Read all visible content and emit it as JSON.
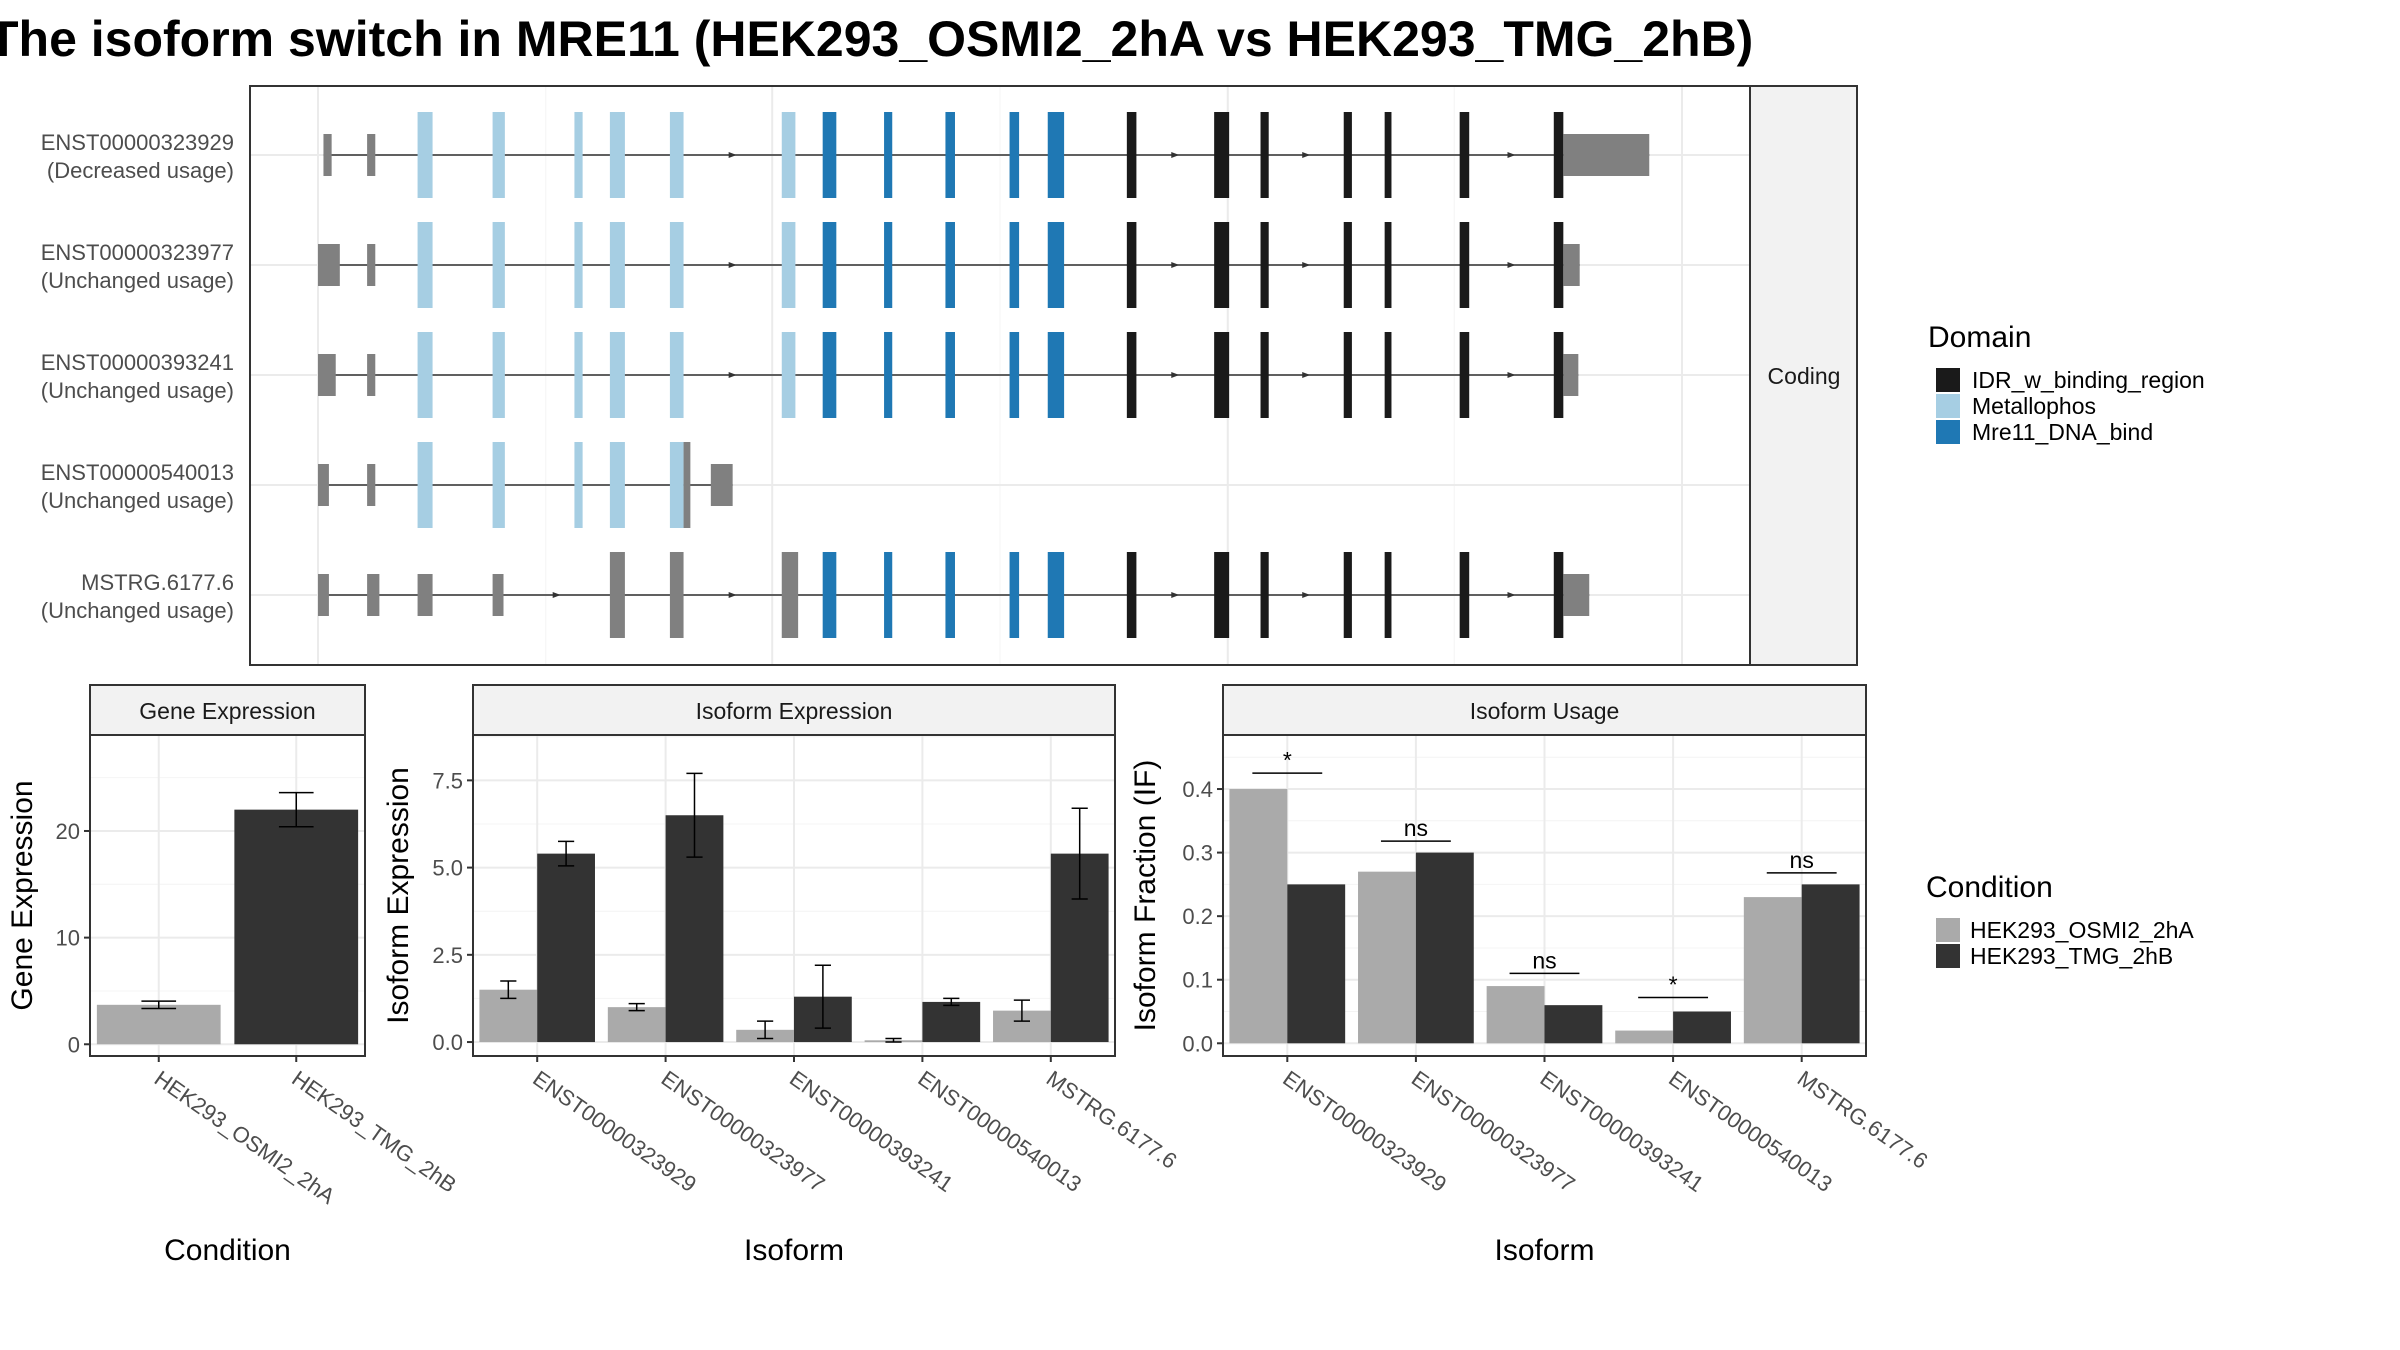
{
  "title": "The isoform switch in MRE11 (HEK293_OSMI2_2hA vs HEK293_TMG_2hB)",
  "colors": {
    "IDR_w_binding_region": "#1a1a1a",
    "Metallophos": "#a6cee3",
    "Mre11_DNA_bind": "#1f78b4",
    "noncoding_exon": "#808080",
    "HEK293_OSMI2_2hA": "#aaaaaa",
    "HEK293_TMG_2hB": "#333333"
  },
  "structure_panel": {
    "facet_label": "Coding",
    "genomic_range": [
      0,
      100
    ],
    "transcripts": [
      {
        "name": "ENST00000323929",
        "usage": "(Decreased usage)",
        "exons": [
          [
            0.4,
            1.0,
            "noncoding_exon",
            "small"
          ],
          [
            3.6,
            4.2,
            "noncoding_exon",
            "small"
          ],
          [
            7.3,
            8.4,
            "Metallophos",
            "large"
          ],
          [
            12.8,
            13.7,
            "Metallophos",
            "large"
          ],
          [
            18.8,
            19.4,
            "Metallophos",
            "large"
          ],
          [
            21.4,
            22.5,
            "Metallophos",
            "large"
          ],
          [
            25.8,
            26.8,
            "Metallophos",
            "large"
          ],
          [
            34.0,
            35.0,
            "Metallophos",
            "large"
          ],
          [
            37.0,
            38.0,
            "Mre11_DNA_bind",
            "large"
          ],
          [
            41.5,
            42.1,
            "Mre11_DNA_bind",
            "large"
          ],
          [
            46.0,
            46.7,
            "Mre11_DNA_bind",
            "large"
          ],
          [
            50.7,
            51.4,
            "Mre11_DNA_bind",
            "large"
          ],
          [
            53.5,
            54.7,
            "Mre11_DNA_bind",
            "large"
          ],
          [
            59.3,
            60.0,
            "IDR_w_binding_region",
            "large"
          ],
          [
            65.7,
            66.8,
            "IDR_w_binding_region",
            "large"
          ],
          [
            69.1,
            69.7,
            "IDR_w_binding_region",
            "large"
          ],
          [
            75.2,
            75.8,
            "IDR_w_binding_region",
            "large"
          ],
          [
            78.2,
            78.7,
            "IDR_w_binding_region",
            "large"
          ],
          [
            83.7,
            84.4,
            "IDR_w_binding_region",
            "large"
          ],
          [
            90.6,
            91.3,
            "IDR_w_binding_region",
            "large"
          ],
          [
            91.3,
            97.6,
            "noncoding_exon",
            "small"
          ]
        ]
      },
      {
        "name": "ENST00000323977",
        "usage": "(Unchanged usage)",
        "exons": [
          [
            0.0,
            1.6,
            "noncoding_exon",
            "small"
          ],
          [
            3.6,
            4.2,
            "noncoding_exon",
            "small"
          ],
          [
            7.3,
            8.4,
            "Metallophos",
            "large"
          ],
          [
            12.8,
            13.7,
            "Metallophos",
            "large"
          ],
          [
            18.8,
            19.4,
            "Metallophos",
            "large"
          ],
          [
            21.4,
            22.5,
            "Metallophos",
            "large"
          ],
          [
            25.8,
            26.8,
            "Metallophos",
            "large"
          ],
          [
            34.0,
            35.0,
            "Metallophos",
            "large"
          ],
          [
            37.0,
            38.0,
            "Mre11_DNA_bind",
            "large"
          ],
          [
            41.5,
            42.1,
            "Mre11_DNA_bind",
            "large"
          ],
          [
            46.0,
            46.7,
            "Mre11_DNA_bind",
            "large"
          ],
          [
            50.7,
            51.4,
            "Mre11_DNA_bind",
            "large"
          ],
          [
            53.5,
            54.7,
            "Mre11_DNA_bind",
            "large"
          ],
          [
            59.3,
            60.0,
            "IDR_w_binding_region",
            "large"
          ],
          [
            65.7,
            66.8,
            "IDR_w_binding_region",
            "large"
          ],
          [
            69.1,
            69.7,
            "IDR_w_binding_region",
            "large"
          ],
          [
            75.2,
            75.8,
            "IDR_w_binding_region",
            "large"
          ],
          [
            78.2,
            78.7,
            "IDR_w_binding_region",
            "large"
          ],
          [
            83.7,
            84.4,
            "IDR_w_binding_region",
            "large"
          ],
          [
            90.6,
            91.3,
            "IDR_w_binding_region",
            "large"
          ],
          [
            91.3,
            92.5,
            "noncoding_exon",
            "small"
          ]
        ]
      },
      {
        "name": "ENST00000393241",
        "usage": "(Unchanged usage)",
        "exons": [
          [
            0.0,
            1.3,
            "noncoding_exon",
            "small"
          ],
          [
            3.6,
            4.2,
            "noncoding_exon",
            "small"
          ],
          [
            7.3,
            8.4,
            "Metallophos",
            "large"
          ],
          [
            12.8,
            13.7,
            "Metallophos",
            "large"
          ],
          [
            18.8,
            19.4,
            "Metallophos",
            "large"
          ],
          [
            21.4,
            22.5,
            "Metallophos",
            "large"
          ],
          [
            25.8,
            26.8,
            "Metallophos",
            "large"
          ],
          [
            34.0,
            35.0,
            "Metallophos",
            "large"
          ],
          [
            37.0,
            38.0,
            "Mre11_DNA_bind",
            "large"
          ],
          [
            41.5,
            42.1,
            "Mre11_DNA_bind",
            "large"
          ],
          [
            46.0,
            46.7,
            "Mre11_DNA_bind",
            "large"
          ],
          [
            50.7,
            51.4,
            "Mre11_DNA_bind",
            "large"
          ],
          [
            53.5,
            54.7,
            "Mre11_DNA_bind",
            "large"
          ],
          [
            59.3,
            60.0,
            "IDR_w_binding_region",
            "large"
          ],
          [
            65.7,
            66.8,
            "IDR_w_binding_region",
            "large"
          ],
          [
            69.1,
            69.7,
            "IDR_w_binding_region",
            "large"
          ],
          [
            75.2,
            75.8,
            "IDR_w_binding_region",
            "large"
          ],
          [
            78.2,
            78.7,
            "IDR_w_binding_region",
            "large"
          ],
          [
            83.7,
            84.4,
            "IDR_w_binding_region",
            "large"
          ],
          [
            90.6,
            91.3,
            "IDR_w_binding_region",
            "large"
          ],
          [
            91.3,
            92.4,
            "noncoding_exon",
            "small"
          ]
        ]
      },
      {
        "name": "ENST00000540013",
        "usage": "(Unchanged usage)",
        "exons": [
          [
            0.0,
            0.8,
            "noncoding_exon",
            "small"
          ],
          [
            3.6,
            4.2,
            "noncoding_exon",
            "small"
          ],
          [
            7.3,
            8.4,
            "Metallophos",
            "large"
          ],
          [
            12.8,
            13.7,
            "Metallophos",
            "large"
          ],
          [
            18.8,
            19.4,
            "Metallophos",
            "large"
          ],
          [
            21.4,
            22.5,
            "Metallophos",
            "large"
          ],
          [
            25.8,
            26.8,
            "Metallophos",
            "large"
          ],
          [
            26.8,
            27.3,
            "noncoding_exon",
            "large"
          ],
          [
            28.8,
            30.4,
            "noncoding_exon",
            "small"
          ]
        ]
      },
      {
        "name": "MSTRG.6177.6",
        "usage": "(Unchanged usage)",
        "exons": [
          [
            0.0,
            0.8,
            "noncoding_exon",
            "small"
          ],
          [
            3.6,
            4.5,
            "noncoding_exon",
            "small"
          ],
          [
            7.3,
            8.4,
            "noncoding_exon",
            "small"
          ],
          [
            12.8,
            13.6,
            "noncoding_exon",
            "small"
          ],
          [
            21.4,
            22.5,
            "noncoding_exon",
            "large"
          ],
          [
            25.8,
            26.8,
            "noncoding_exon",
            "large"
          ],
          [
            34.0,
            35.2,
            "noncoding_exon",
            "large"
          ],
          [
            37.0,
            38.0,
            "Mre11_DNA_bind",
            "large"
          ],
          [
            41.5,
            42.1,
            "Mre11_DNA_bind",
            "large"
          ],
          [
            46.0,
            46.7,
            "Mre11_DNA_bind",
            "large"
          ],
          [
            50.7,
            51.4,
            "Mre11_DNA_bind",
            "large"
          ],
          [
            53.5,
            54.7,
            "Mre11_DNA_bind",
            "large"
          ],
          [
            59.3,
            60.0,
            "IDR_w_binding_region",
            "large"
          ],
          [
            65.7,
            66.8,
            "IDR_w_binding_region",
            "large"
          ],
          [
            69.1,
            69.7,
            "IDR_w_binding_region",
            "large"
          ],
          [
            75.2,
            75.8,
            "IDR_w_binding_region",
            "large"
          ],
          [
            78.2,
            78.7,
            "IDR_w_binding_region",
            "large"
          ],
          [
            83.7,
            84.4,
            "IDR_w_binding_region",
            "large"
          ],
          [
            90.6,
            91.3,
            "IDR_w_binding_region",
            "large"
          ],
          [
            91.3,
            93.2,
            "noncoding_exon",
            "small"
          ]
        ]
      }
    ]
  },
  "legends": {
    "domain": {
      "title": "Domain",
      "items": [
        "IDR_w_binding_region",
        "Metallophos",
        "Mre11_DNA_bind"
      ]
    },
    "condition": {
      "title": "Condition",
      "items": [
        "HEK293_OSMI2_2hA",
        "HEK293_TMG_2hB"
      ]
    }
  },
  "chart_data": [
    {
      "type": "bar",
      "title": "Gene Expression",
      "xlabel": "Condition",
      "ylabel": "Gene Expression",
      "categories": [
        "HEK293_OSMI2_2hA",
        "HEK293_TMG_2hB"
      ],
      "values": [
        3.7,
        22.0
      ],
      "errors": [
        0.35,
        1.6
      ],
      "ylim": [
        -1.1,
        29.0
      ],
      "yticks": [
        0,
        10,
        20
      ]
    },
    {
      "type": "bar",
      "title": "Isoform Expression",
      "xlabel": "Isoform",
      "ylabel": "Isoform Expression",
      "categories": [
        "ENST00000323929",
        "ENST00000323977",
        "ENST00000393241",
        "ENST00000540013",
        "MSTRG.6177.6"
      ],
      "series": [
        {
          "name": "HEK293_OSMI2_2hA",
          "values": [
            1.5,
            1.0,
            0.35,
            0.05,
            0.9
          ],
          "errors": [
            0.25,
            0.1,
            0.25,
            0.05,
            0.3
          ]
        },
        {
          "name": "HEK293_TMG_2hB",
          "values": [
            5.4,
            6.5,
            1.3,
            1.15,
            5.4
          ],
          "errors": [
            0.35,
            1.2,
            0.9,
            0.1,
            1.3
          ]
        }
      ],
      "ylim": [
        -0.4,
        8.8
      ],
      "yticks": [
        0.0,
        2.5,
        5.0,
        7.5
      ]
    },
    {
      "type": "bar",
      "title": "Isoform Usage",
      "xlabel": "Isoform",
      "ylabel": "Isoform Fraction (IF)",
      "categories": [
        "ENST00000323929",
        "ENST00000323977",
        "ENST00000393241",
        "ENST00000540013",
        "MSTRG.6177.6"
      ],
      "series": [
        {
          "name": "HEK293_OSMI2_2hA",
          "values": [
            0.4,
            0.27,
            0.09,
            0.02,
            0.23
          ]
        },
        {
          "name": "HEK293_TMG_2hB",
          "values": [
            0.25,
            0.3,
            0.06,
            0.05,
            0.25
          ]
        }
      ],
      "significance": [
        "*",
        "ns",
        "ns",
        "*",
        "ns"
      ],
      "sig_y": [
        0.425,
        0.318,
        0.11,
        0.072,
        0.268
      ],
      "ylim": [
        -0.02,
        0.485
      ],
      "yticks": [
        0.0,
        0.1,
        0.2,
        0.3,
        0.4
      ]
    }
  ]
}
